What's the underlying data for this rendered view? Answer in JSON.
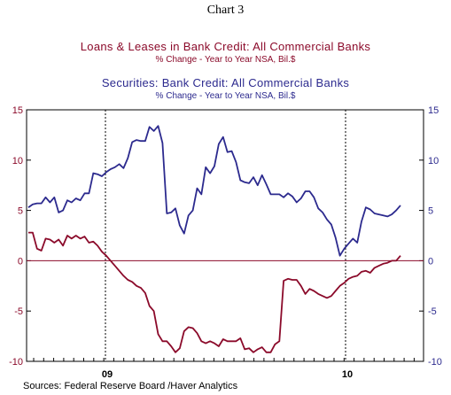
{
  "chart_data": {
    "type": "line",
    "title": "Chart 3",
    "series": [
      {
        "name": "Loans & Leases in Bank Credit: All Commercial Banks",
        "subtitle": "% Change - Year to Year     NSA, Bil.$",
        "color": "#8b0a2a",
        "values": [
          2.8,
          2.8,
          1.2,
          1.0,
          2.2,
          2.1,
          1.8,
          2.1,
          1.5,
          2.5,
          2.2,
          2.5,
          2.2,
          2.4,
          1.8,
          1.9,
          1.5,
          0.9,
          0.5,
          0.0,
          -0.5,
          -1.0,
          -1.5,
          -1.9,
          -2.1,
          -2.5,
          -2.7,
          -3.2,
          -4.5,
          -5.0,
          -7.3,
          -8.0,
          -8.0,
          -8.5,
          -9.1,
          -8.7,
          -7.0,
          -6.6,
          -6.7,
          -7.2,
          -8.0,
          -8.2,
          -8.0,
          -8.2,
          -8.5,
          -7.8,
          -8.0,
          -8.0,
          -8.0,
          -7.7,
          -8.8,
          -8.7,
          -9.1,
          -8.8,
          -8.6,
          -9.1,
          -9.1,
          -8.3,
          -8.0,
          -2.0,
          -1.8,
          -1.9,
          -1.9,
          -2.5,
          -3.3,
          -2.8,
          -3.0,
          -3.3,
          -3.5,
          -3.7,
          -3.5,
          -3.0,
          -2.5,
          -2.2,
          -1.8,
          -1.6,
          -1.5,
          -1.1,
          -1.0,
          -1.2,
          -0.7,
          -0.5,
          -0.3,
          -0.2,
          0.0,
          0.0,
          0.5
        ]
      },
      {
        "name": "Securities: Bank Credit: All Commercial Banks",
        "subtitle": "% Change - Year to Year     NSA, Bil.$",
        "color": "#2c2a8e",
        "values": [
          5.3,
          5.6,
          5.7,
          5.7,
          6.3,
          5.8,
          6.3,
          4.8,
          5.0,
          6.0,
          5.8,
          6.2,
          6.0,
          6.7,
          6.7,
          8.7,
          8.6,
          8.4,
          8.8,
          9.1,
          9.3,
          9.6,
          9.2,
          10.2,
          11.8,
          12.0,
          11.9,
          11.9,
          13.3,
          12.9,
          13.4,
          11.7,
          4.7,
          4.8,
          5.2,
          3.5,
          2.7,
          4.5,
          5.0,
          7.2,
          6.6,
          9.3,
          8.7,
          9.4,
          11.6,
          12.3,
          10.8,
          10.9,
          9.8,
          8.0,
          7.8,
          7.7,
          8.3,
          7.5,
          8.5,
          7.6,
          6.6,
          6.6,
          6.6,
          6.3,
          6.7,
          6.4,
          5.8,
          6.2,
          6.9,
          6.9,
          6.3,
          5.2,
          4.8,
          4.1,
          3.6,
          2.3,
          0.5,
          1.2,
          1.7,
          2.2,
          1.8,
          3.9,
          5.3,
          5.1,
          4.7,
          4.6,
          4.5,
          4.4,
          4.6,
          5.0,
          5.5
        ]
      }
    ],
    "y_ticks": [
      "15",
      "10",
      "5",
      "0",
      "-5",
      "-10"
    ],
    "ylim": [
      -10,
      15
    ],
    "x_labels": [
      "09",
      "10"
    ],
    "zero_line": true,
    "grid": "dashed vertical at year boundaries"
  },
  "source": "Sources:  Federal Reserve Board /Haver Analytics"
}
